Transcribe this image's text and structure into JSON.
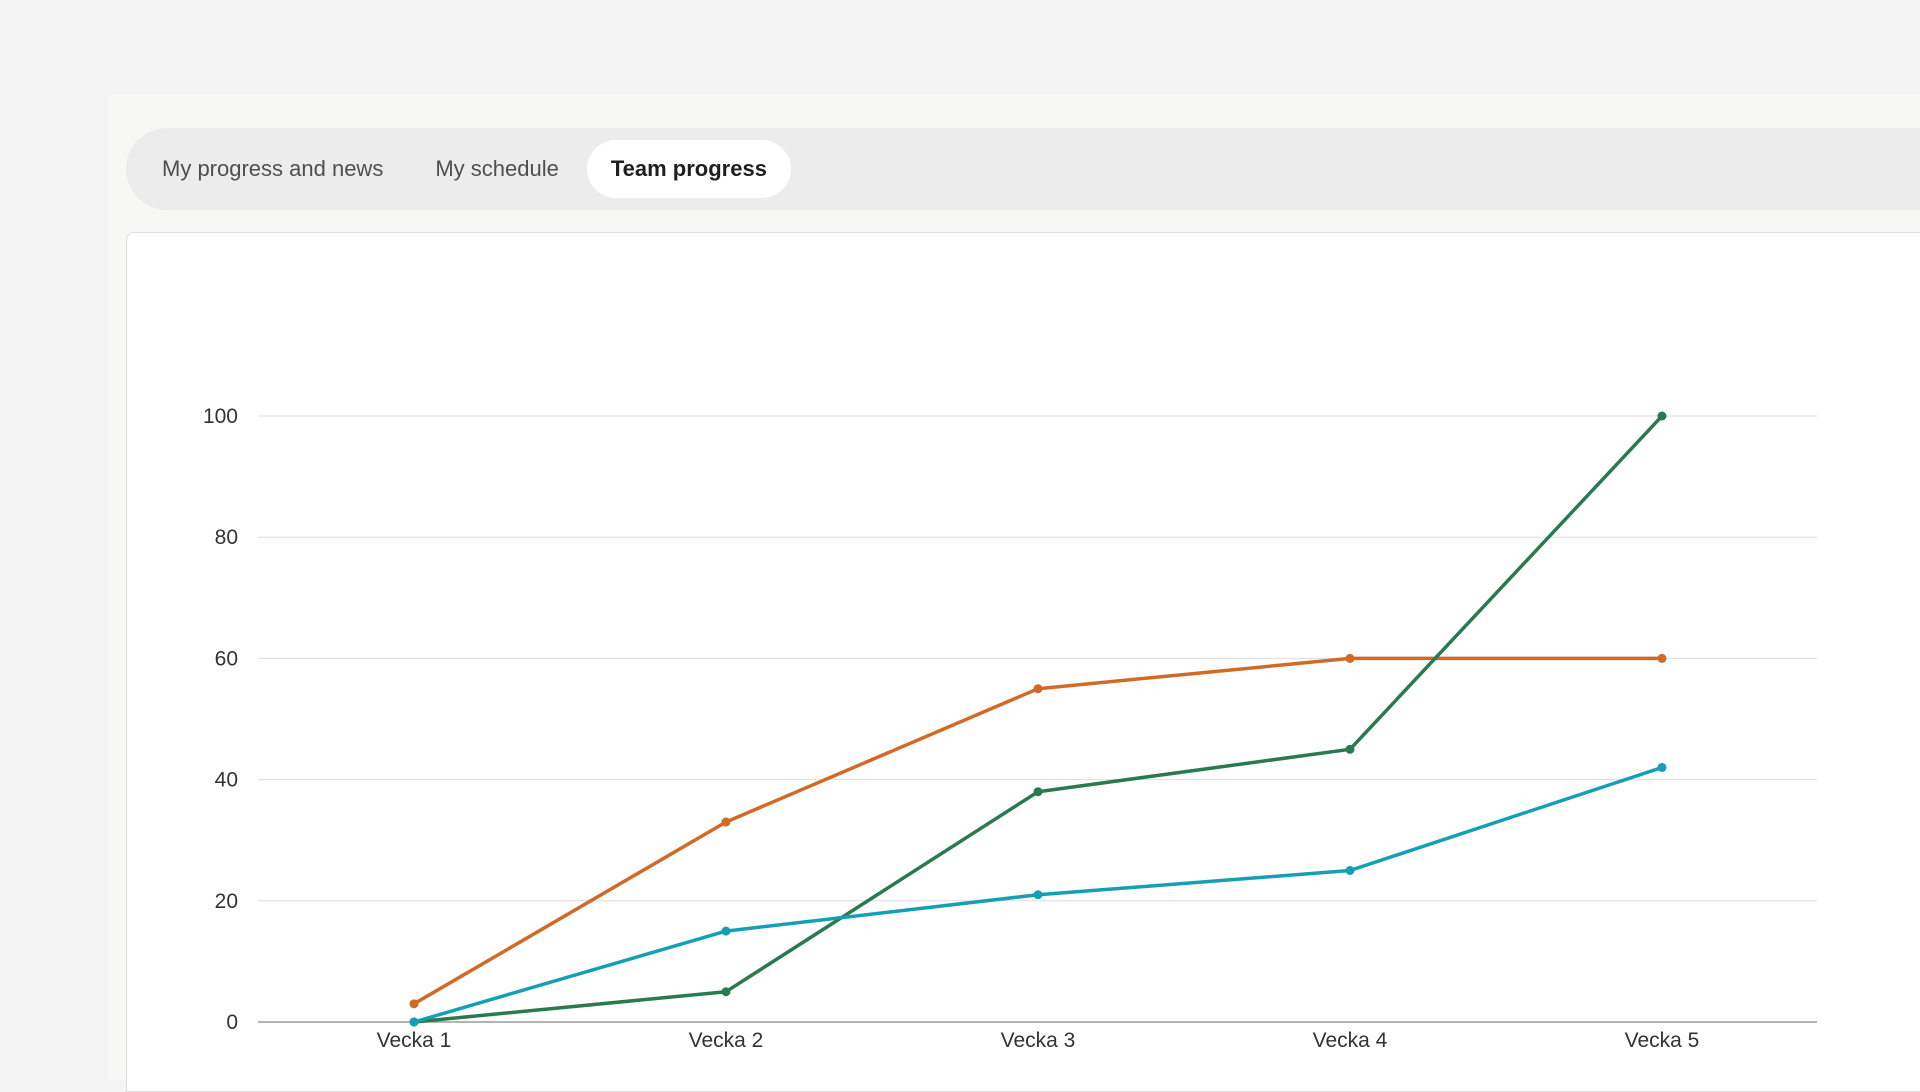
{
  "tabs": [
    {
      "label": "My progress and news",
      "active": false
    },
    {
      "label": "My schedule",
      "active": false
    },
    {
      "label": "Team progress",
      "active": true
    }
  ],
  "chart_data": {
    "type": "line",
    "categories": [
      "Vecka 1",
      "Vecka 2",
      "Vecka 3",
      "Vecka 4",
      "Vecka 5"
    ],
    "series": [
      {
        "color": "#d26a27",
        "values": [
          3,
          33,
          55,
          60,
          60
        ]
      },
      {
        "color": "#2a7a4f",
        "values": [
          0,
          5,
          38,
          45,
          100
        ]
      },
      {
        "color": "#149fb4",
        "values": [
          0,
          15,
          21,
          25,
          42
        ]
      }
    ],
    "y_ticks": [
      "0",
      "20",
      "40",
      "60",
      "80",
      "100"
    ],
    "ylim": [
      0,
      100
    ],
    "grid": true,
    "legend": "none",
    "title": "",
    "xlabel": "",
    "ylabel": ""
  }
}
